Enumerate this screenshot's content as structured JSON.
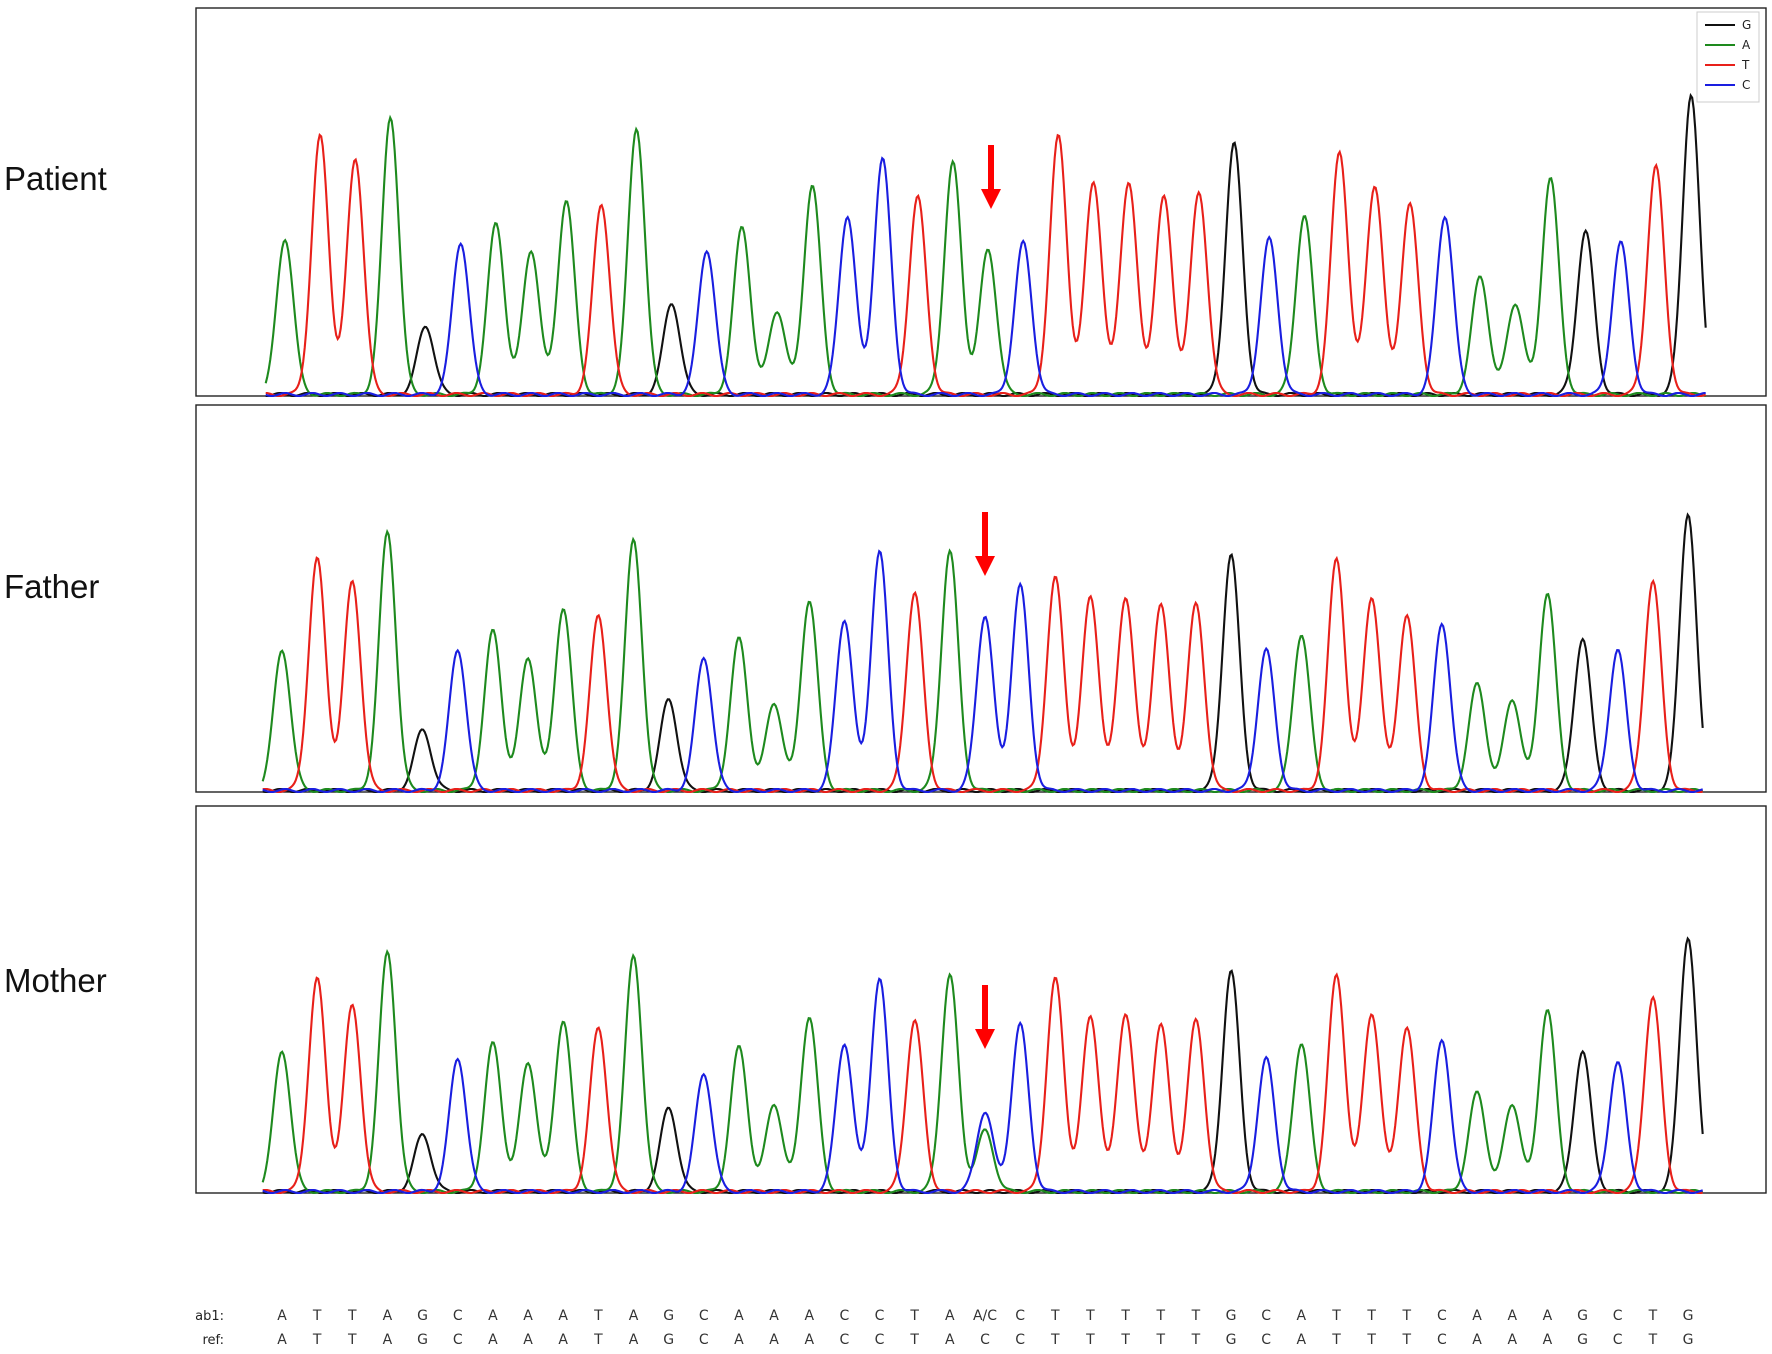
{
  "chart_data": {
    "type": "line",
    "legend": {
      "position": "top-right",
      "entries": [
        "G",
        "A",
        "T",
        "C"
      ]
    },
    "colors": {
      "G": "#111111",
      "A": "#1e8a1e",
      "T": "#e8201a",
      "C": "#1a1ee0",
      "het": "#f0a000",
      "arrow": "#ff0000"
    },
    "sequence_label": "ab1:",
    "reference_label": "ref:",
    "panels": [
      {
        "sample": "Patient",
        "bases": [
          "A",
          "T",
          "T",
          "A",
          "G",
          "C",
          "A",
          "A",
          "A",
          "T",
          "A",
          "G",
          "C",
          "A",
          "A",
          "A",
          "C",
          "C",
          "T",
          "A",
          "A",
          "C",
          "T",
          "T",
          "T",
          "T",
          "T",
          "G",
          "C",
          "A",
          "T",
          "T",
          "T",
          "C",
          "A",
          "A",
          "A",
          "G",
          "C",
          "T",
          "G"
        ],
        "highlight_index": 20,
        "highlight_color": "#e8201a",
        "peaks": [
          {
            "A": 0.41
          },
          {
            "T": 0.68
          },
          {
            "T": 0.62
          },
          {
            "A": 0.73
          },
          {
            "G": 0.18
          },
          {
            "C": 0.4
          },
          {
            "A": 0.45
          },
          {
            "A": 0.38
          },
          {
            "A": 0.51
          },
          {
            "T": 0.5
          },
          {
            "A": 0.7
          },
          {
            "G": 0.24
          },
          {
            "C": 0.38
          },
          {
            "A": 0.44
          },
          {
            "A": 0.22
          },
          {
            "A": 0.55
          },
          {
            "C": 0.47
          },
          {
            "C": 0.62
          },
          {
            "T": 0.52
          },
          {
            "A": 0.61
          },
          {
            "A": 0.38
          },
          {
            "C": 0.4
          },
          {
            "T": 0.68
          },
          {
            "T": 0.56
          },
          {
            "T": 0.56
          },
          {
            "T": 0.52
          },
          {
            "T": 0.53
          },
          {
            "G": 0.66
          },
          {
            "C": 0.41
          },
          {
            "A": 0.47
          },
          {
            "T": 0.64
          },
          {
            "T": 0.55
          },
          {
            "T": 0.5
          },
          {
            "C": 0.47
          },
          {
            "A": 0.31
          },
          {
            "A": 0.24
          },
          {
            "A": 0.57
          },
          {
            "G": 0.43
          },
          {
            "C": 0.4
          },
          {
            "T": 0.6
          },
          {
            "G": 0.79
          }
        ]
      },
      {
        "sample": "Father",
        "bases": [
          "A",
          "T",
          "T",
          "A",
          "G",
          "C",
          "A",
          "A",
          "A",
          "T",
          "A",
          "G",
          "C",
          "A",
          "A",
          "A",
          "C",
          "C",
          "T",
          "A",
          "C",
          "C",
          "T",
          "T",
          "T",
          "T",
          "T",
          "G",
          "C",
          "A",
          "T",
          "T",
          "T",
          "C",
          "A",
          "A",
          "A",
          "G",
          "C",
          "T",
          "G"
        ],
        "highlight_index": 20,
        "highlight_color": "#333333",
        "peaks": [
          {
            "A": 0.37
          },
          {
            "T": 0.61
          },
          {
            "T": 0.55
          },
          {
            "A": 0.68
          },
          {
            "G": 0.16
          },
          {
            "C": 0.37
          },
          {
            "A": 0.42
          },
          {
            "A": 0.35
          },
          {
            "A": 0.48
          },
          {
            "T": 0.46
          },
          {
            "A": 0.66
          },
          {
            "G": 0.24
          },
          {
            "C": 0.35
          },
          {
            "A": 0.4
          },
          {
            "A": 0.23
          },
          {
            "A": 0.5
          },
          {
            "C": 0.45
          },
          {
            "C": 0.63
          },
          {
            "T": 0.52
          },
          {
            "A": 0.63
          },
          {
            "C": 0.46
          },
          {
            "C": 0.54
          },
          {
            "T": 0.56
          },
          {
            "T": 0.51
          },
          {
            "T": 0.51
          },
          {
            "T": 0.49
          },
          {
            "T": 0.49
          },
          {
            "G": 0.62
          },
          {
            "C": 0.37
          },
          {
            "A": 0.41
          },
          {
            "T": 0.61
          },
          {
            "T": 0.51
          },
          {
            "T": 0.46
          },
          {
            "C": 0.44
          },
          {
            "A": 0.28
          },
          {
            "A": 0.24
          },
          {
            "A": 0.52
          },
          {
            "G": 0.4
          },
          {
            "C": 0.37
          },
          {
            "T": 0.55
          },
          {
            "G": 0.73
          }
        ]
      },
      {
        "sample": "Mother",
        "bases": [
          "A",
          "T",
          "T",
          "A",
          "G",
          "C",
          "A",
          "A",
          "A",
          "T",
          "A",
          "G",
          "C",
          "A",
          "A",
          "A",
          "C",
          "C",
          "T",
          "A",
          "A/C",
          "C",
          "T",
          "T",
          "T",
          "T",
          "T",
          "G",
          "C",
          "A",
          "T",
          "T",
          "T",
          "C",
          "A",
          "A",
          "A",
          "G",
          "C",
          "T",
          "G"
        ],
        "reference": [
          "A",
          "T",
          "T",
          "A",
          "G",
          "C",
          "A",
          "A",
          "A",
          "T",
          "A",
          "G",
          "C",
          "A",
          "A",
          "A",
          "C",
          "C",
          "T",
          "A",
          "C",
          "C",
          "T",
          "T",
          "T",
          "T",
          "T",
          "G",
          "C",
          "A",
          "T",
          "T",
          "T",
          "C",
          "A",
          "A",
          "A",
          "G",
          "C",
          "T",
          "G"
        ],
        "highlight_index": 20,
        "highlight_color": "#f0a000",
        "peaks": [
          {
            "A": 0.37
          },
          {
            "T": 0.56
          },
          {
            "T": 0.49
          },
          {
            "A": 0.63
          },
          {
            "G": 0.15
          },
          {
            "C": 0.35
          },
          {
            "A": 0.39
          },
          {
            "A": 0.34
          },
          {
            "A": 0.45
          },
          {
            "T": 0.43
          },
          {
            "A": 0.62
          },
          {
            "G": 0.22
          },
          {
            "C": 0.31
          },
          {
            "A": 0.38
          },
          {
            "A": 0.23
          },
          {
            "A": 0.46
          },
          {
            "C": 0.39
          },
          {
            "C": 0.56
          },
          {
            "T": 0.45
          },
          {
            "A": 0.57
          },
          {
            "C": 0.21,
            "A": 0.16
          },
          {
            "C": 0.44
          },
          {
            "T": 0.56
          },
          {
            "T": 0.46
          },
          {
            "T": 0.47
          },
          {
            "T": 0.44
          },
          {
            "T": 0.45
          },
          {
            "G": 0.58
          },
          {
            "C": 0.35
          },
          {
            "A": 0.39
          },
          {
            "T": 0.57
          },
          {
            "T": 0.47
          },
          {
            "T": 0.43
          },
          {
            "C": 0.4
          },
          {
            "A": 0.26
          },
          {
            "A": 0.23
          },
          {
            "A": 0.48
          },
          {
            "G": 0.37
          },
          {
            "C": 0.34
          },
          {
            "T": 0.51
          },
          {
            "G": 0.67
          }
        ]
      }
    ]
  }
}
